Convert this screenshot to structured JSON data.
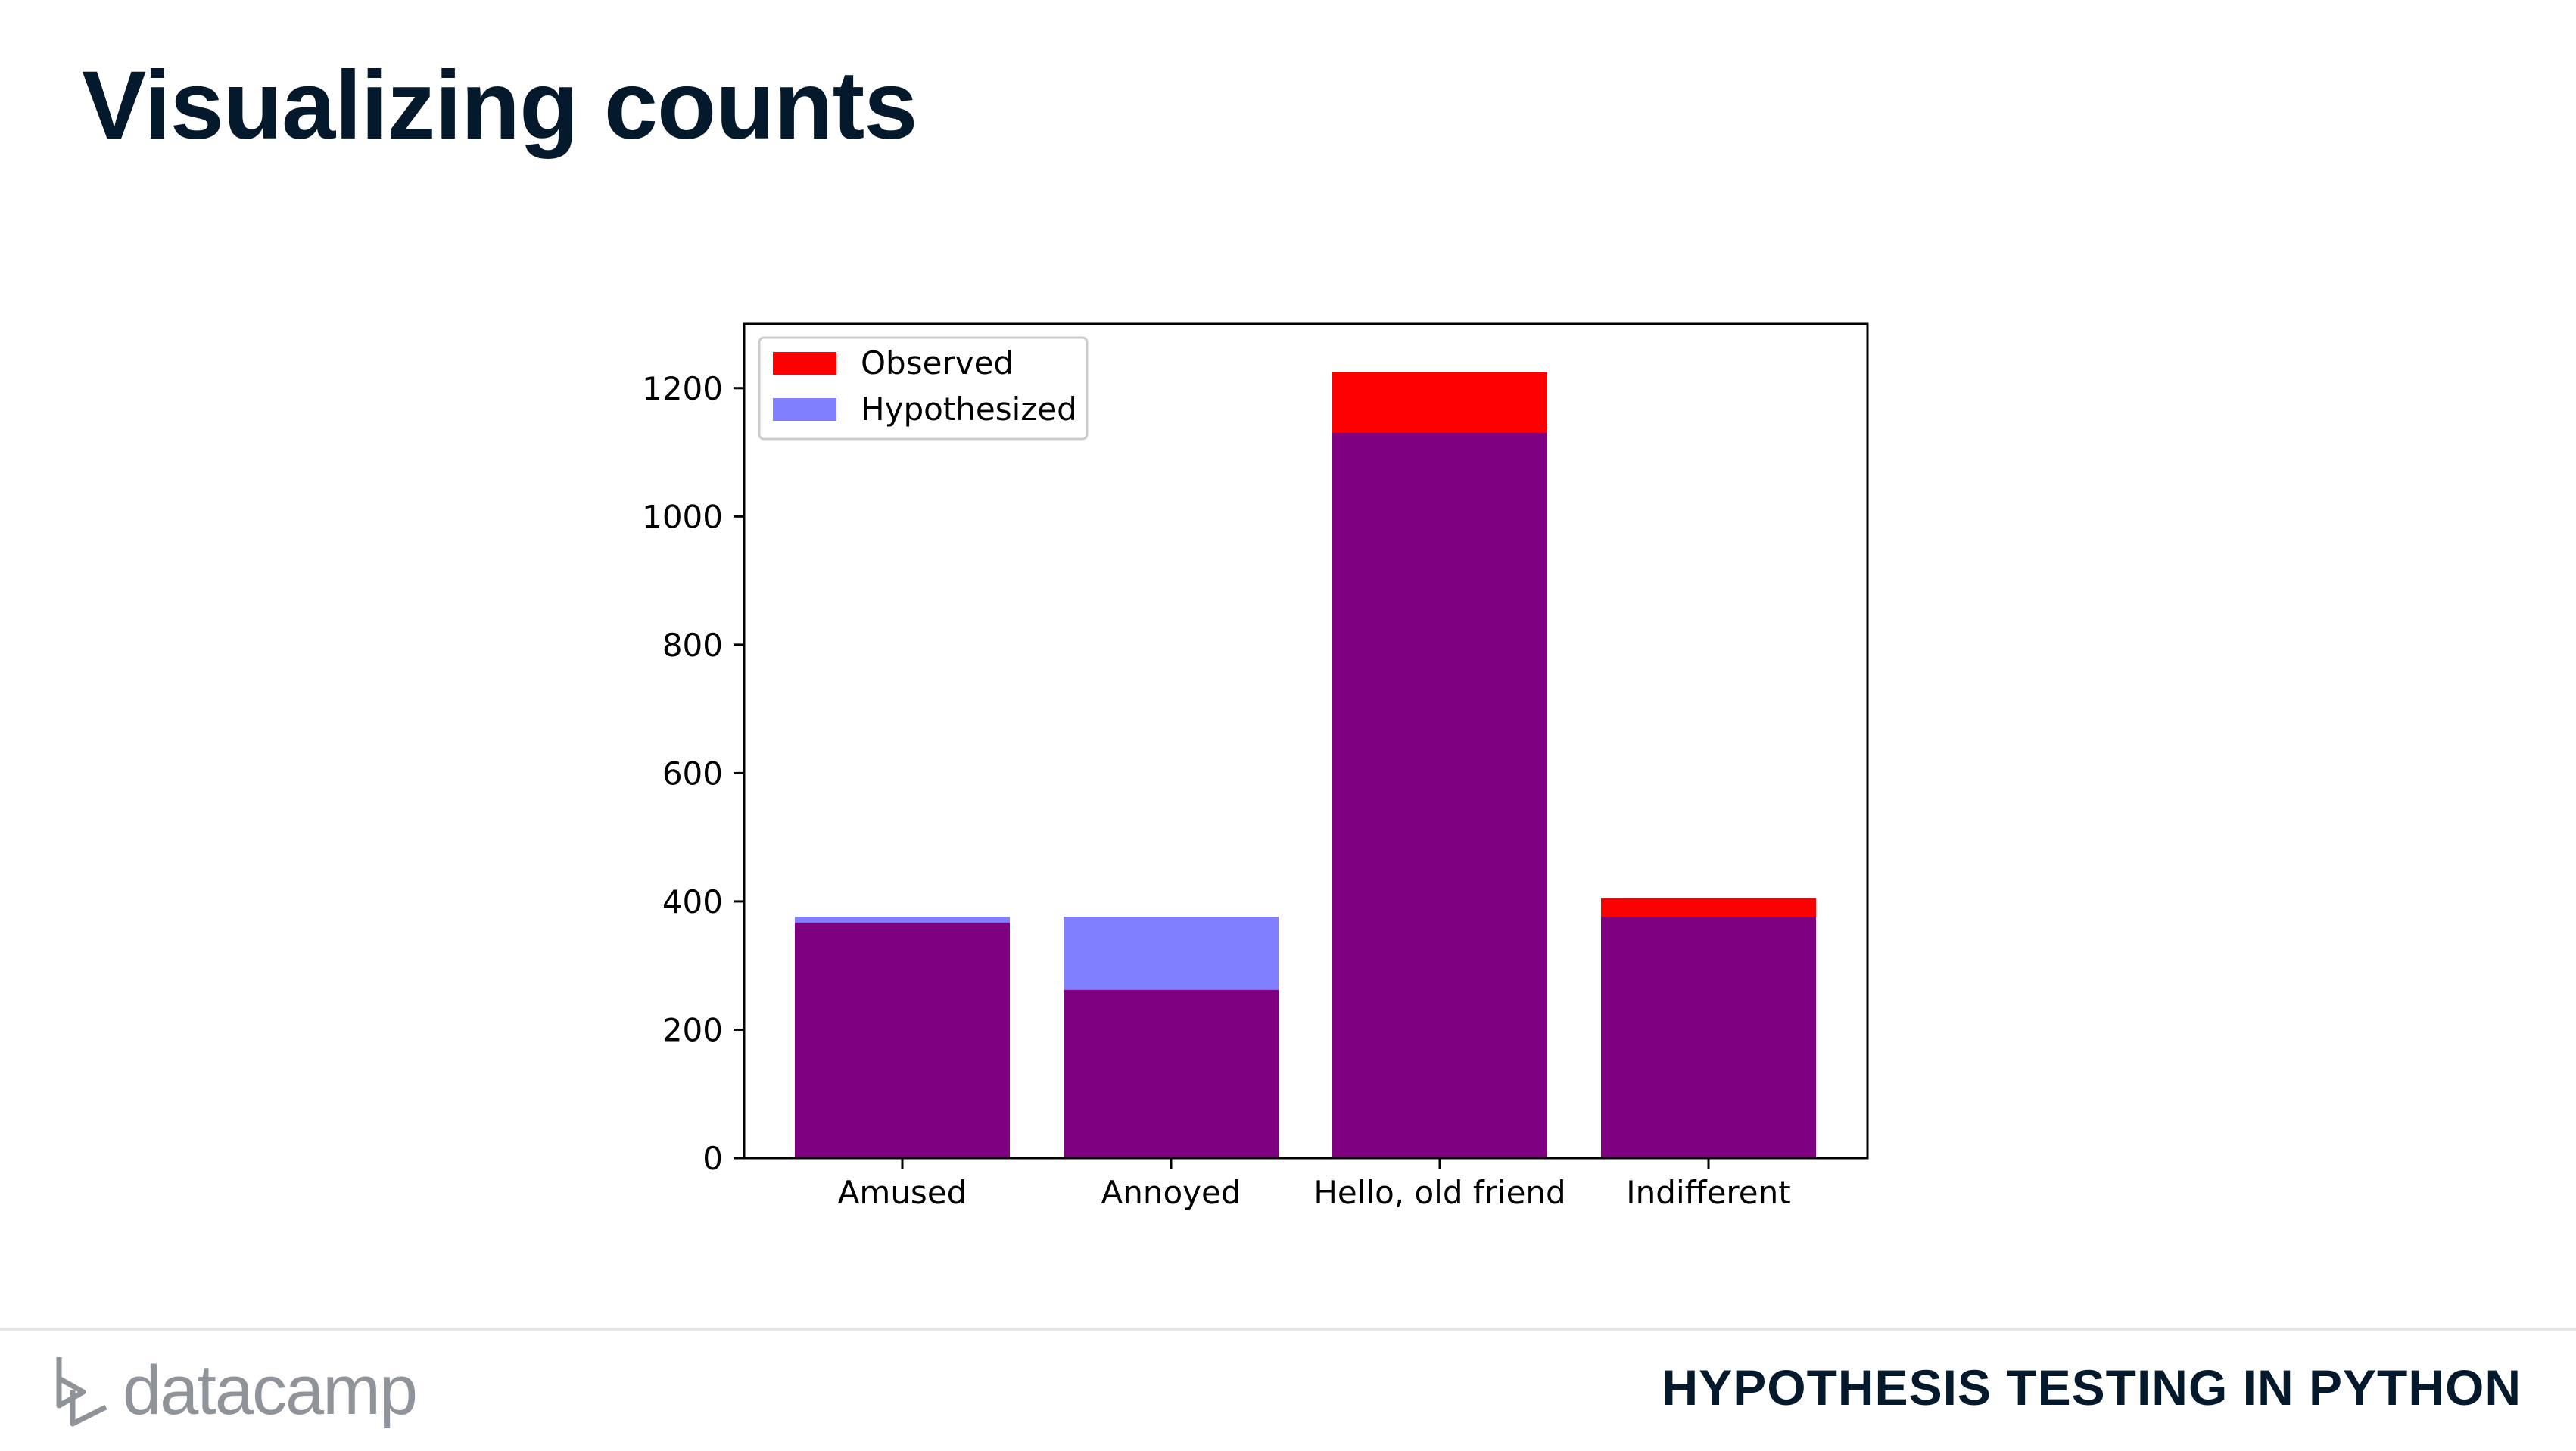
{
  "slide": {
    "title": "Visualizing counts",
    "course": "HYPOTHESIS TESTING IN PYTHON",
    "brand": "datacamp"
  },
  "colors": {
    "observed": "#ff0000",
    "hypothesized": "#8080ff",
    "overlap": "#800080",
    "title": "#05192d",
    "brand_gray": "#8e9499"
  },
  "chart_data": {
    "type": "bar",
    "categories": [
      "Amused",
      "Annoyed",
      "Hello, old friend",
      "Indifferent"
    ],
    "series": [
      {
        "name": "Observed",
        "values": [
          367,
          262,
          1225,
          405
        ],
        "color": "#ff0000"
      },
      {
        "name": "Hypothesized",
        "values": [
          376,
          376,
          1130,
          376
        ],
        "color": "#8080ff"
      }
    ],
    "title": "",
    "xlabel": "",
    "ylabel": "",
    "ylim": [
      0,
      1300
    ],
    "yticks": [
      0,
      200,
      400,
      600,
      800,
      1000,
      1200
    ],
    "grid": false,
    "legend": "top-left"
  }
}
